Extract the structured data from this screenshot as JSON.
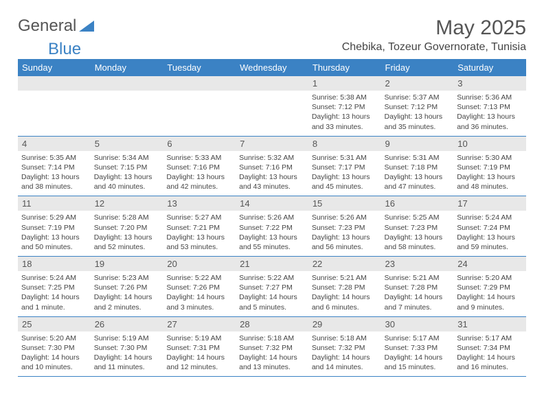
{
  "brand": {
    "part1": "General",
    "part2": "Blue"
  },
  "title": "May 2025",
  "location": "Chebika, Tozeur Governorate, Tunisia",
  "colors": {
    "header_bg": "#3b82c4",
    "header_text": "#ffffff",
    "daynum_bg": "#e8e8e8",
    "border": "#3b82c4",
    "text": "#444444",
    "title_text": "#555555"
  },
  "typography": {
    "title_fontsize": 30,
    "subtitle_fontsize": 16,
    "dayheader_fontsize": 13,
    "daynum_fontsize": 13,
    "cell_fontsize": 10.5
  },
  "day_headers": [
    "Sunday",
    "Monday",
    "Tuesday",
    "Wednesday",
    "Thursday",
    "Friday",
    "Saturday"
  ],
  "weeks": [
    [
      {
        "blank": true
      },
      {
        "blank": true
      },
      {
        "blank": true
      },
      {
        "blank": true
      },
      {
        "day": "1",
        "sunrise": "Sunrise: 5:38 AM",
        "sunset": "Sunset: 7:12 PM",
        "daylight": "Daylight: 13 hours and 33 minutes."
      },
      {
        "day": "2",
        "sunrise": "Sunrise: 5:37 AM",
        "sunset": "Sunset: 7:12 PM",
        "daylight": "Daylight: 13 hours and 35 minutes."
      },
      {
        "day": "3",
        "sunrise": "Sunrise: 5:36 AM",
        "sunset": "Sunset: 7:13 PM",
        "daylight": "Daylight: 13 hours and 36 minutes."
      }
    ],
    [
      {
        "day": "4",
        "sunrise": "Sunrise: 5:35 AM",
        "sunset": "Sunset: 7:14 PM",
        "daylight": "Daylight: 13 hours and 38 minutes."
      },
      {
        "day": "5",
        "sunrise": "Sunrise: 5:34 AM",
        "sunset": "Sunset: 7:15 PM",
        "daylight": "Daylight: 13 hours and 40 minutes."
      },
      {
        "day": "6",
        "sunrise": "Sunrise: 5:33 AM",
        "sunset": "Sunset: 7:16 PM",
        "daylight": "Daylight: 13 hours and 42 minutes."
      },
      {
        "day": "7",
        "sunrise": "Sunrise: 5:32 AM",
        "sunset": "Sunset: 7:16 PM",
        "daylight": "Daylight: 13 hours and 43 minutes."
      },
      {
        "day": "8",
        "sunrise": "Sunrise: 5:31 AM",
        "sunset": "Sunset: 7:17 PM",
        "daylight": "Daylight: 13 hours and 45 minutes."
      },
      {
        "day": "9",
        "sunrise": "Sunrise: 5:31 AM",
        "sunset": "Sunset: 7:18 PM",
        "daylight": "Daylight: 13 hours and 47 minutes."
      },
      {
        "day": "10",
        "sunrise": "Sunrise: 5:30 AM",
        "sunset": "Sunset: 7:19 PM",
        "daylight": "Daylight: 13 hours and 48 minutes."
      }
    ],
    [
      {
        "day": "11",
        "sunrise": "Sunrise: 5:29 AM",
        "sunset": "Sunset: 7:19 PM",
        "daylight": "Daylight: 13 hours and 50 minutes."
      },
      {
        "day": "12",
        "sunrise": "Sunrise: 5:28 AM",
        "sunset": "Sunset: 7:20 PM",
        "daylight": "Daylight: 13 hours and 52 minutes."
      },
      {
        "day": "13",
        "sunrise": "Sunrise: 5:27 AM",
        "sunset": "Sunset: 7:21 PM",
        "daylight": "Daylight: 13 hours and 53 minutes."
      },
      {
        "day": "14",
        "sunrise": "Sunrise: 5:26 AM",
        "sunset": "Sunset: 7:22 PM",
        "daylight": "Daylight: 13 hours and 55 minutes."
      },
      {
        "day": "15",
        "sunrise": "Sunrise: 5:26 AM",
        "sunset": "Sunset: 7:23 PM",
        "daylight": "Daylight: 13 hours and 56 minutes."
      },
      {
        "day": "16",
        "sunrise": "Sunrise: 5:25 AM",
        "sunset": "Sunset: 7:23 PM",
        "daylight": "Daylight: 13 hours and 58 minutes."
      },
      {
        "day": "17",
        "sunrise": "Sunrise: 5:24 AM",
        "sunset": "Sunset: 7:24 PM",
        "daylight": "Daylight: 13 hours and 59 minutes."
      }
    ],
    [
      {
        "day": "18",
        "sunrise": "Sunrise: 5:24 AM",
        "sunset": "Sunset: 7:25 PM",
        "daylight": "Daylight: 14 hours and 1 minute."
      },
      {
        "day": "19",
        "sunrise": "Sunrise: 5:23 AM",
        "sunset": "Sunset: 7:26 PM",
        "daylight": "Daylight: 14 hours and 2 minutes."
      },
      {
        "day": "20",
        "sunrise": "Sunrise: 5:22 AM",
        "sunset": "Sunset: 7:26 PM",
        "daylight": "Daylight: 14 hours and 3 minutes."
      },
      {
        "day": "21",
        "sunrise": "Sunrise: 5:22 AM",
        "sunset": "Sunset: 7:27 PM",
        "daylight": "Daylight: 14 hours and 5 minutes."
      },
      {
        "day": "22",
        "sunrise": "Sunrise: 5:21 AM",
        "sunset": "Sunset: 7:28 PM",
        "daylight": "Daylight: 14 hours and 6 minutes."
      },
      {
        "day": "23",
        "sunrise": "Sunrise: 5:21 AM",
        "sunset": "Sunset: 7:28 PM",
        "daylight": "Daylight: 14 hours and 7 minutes."
      },
      {
        "day": "24",
        "sunrise": "Sunrise: 5:20 AM",
        "sunset": "Sunset: 7:29 PM",
        "daylight": "Daylight: 14 hours and 9 minutes."
      }
    ],
    [
      {
        "day": "25",
        "sunrise": "Sunrise: 5:20 AM",
        "sunset": "Sunset: 7:30 PM",
        "daylight": "Daylight: 14 hours and 10 minutes."
      },
      {
        "day": "26",
        "sunrise": "Sunrise: 5:19 AM",
        "sunset": "Sunset: 7:30 PM",
        "daylight": "Daylight: 14 hours and 11 minutes."
      },
      {
        "day": "27",
        "sunrise": "Sunrise: 5:19 AM",
        "sunset": "Sunset: 7:31 PM",
        "daylight": "Daylight: 14 hours and 12 minutes."
      },
      {
        "day": "28",
        "sunrise": "Sunrise: 5:18 AM",
        "sunset": "Sunset: 7:32 PM",
        "daylight": "Daylight: 14 hours and 13 minutes."
      },
      {
        "day": "29",
        "sunrise": "Sunrise: 5:18 AM",
        "sunset": "Sunset: 7:32 PM",
        "daylight": "Daylight: 14 hours and 14 minutes."
      },
      {
        "day": "30",
        "sunrise": "Sunrise: 5:17 AM",
        "sunset": "Sunset: 7:33 PM",
        "daylight": "Daylight: 14 hours and 15 minutes."
      },
      {
        "day": "31",
        "sunrise": "Sunrise: 5:17 AM",
        "sunset": "Sunset: 7:34 PM",
        "daylight": "Daylight: 14 hours and 16 minutes."
      }
    ]
  ]
}
